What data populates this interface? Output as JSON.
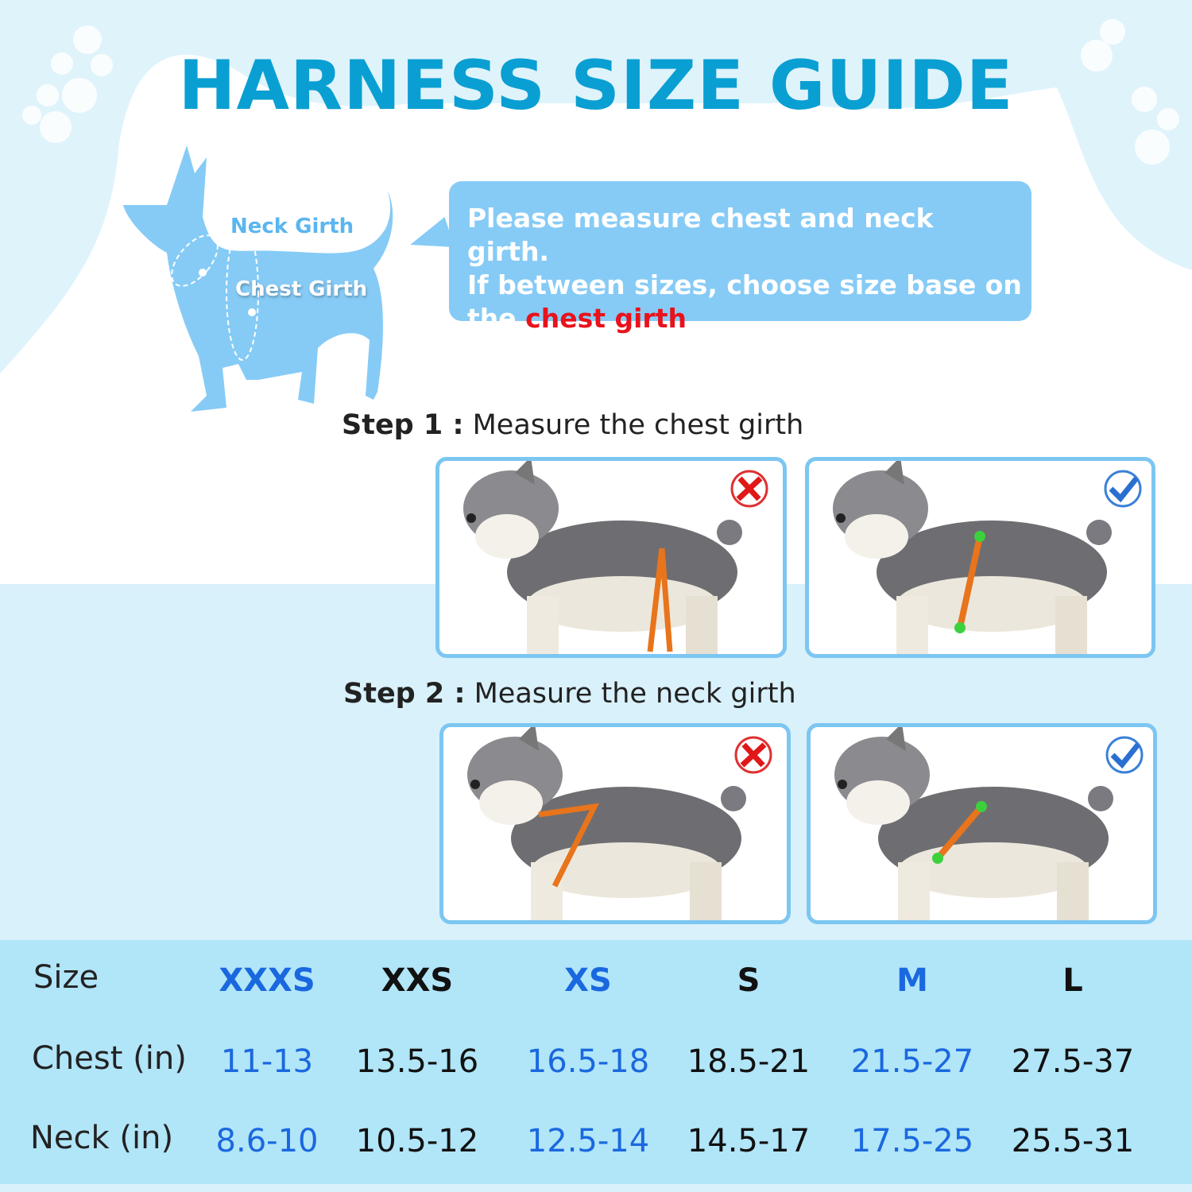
{
  "title": "HARNESS SIZE GUIDE",
  "diagram": {
    "neck_label": "Neck Girth",
    "chest_label": "Chest Girth"
  },
  "note": {
    "line1": "Please measure chest and neck girth.",
    "line2": "If between sizes, choose size base on",
    "line3_prefix": "the ",
    "line3_highlight": "chest girth",
    "line3_suffix": ".",
    "highlight_color": "#e8121c"
  },
  "steps": [
    {
      "label": "Step 1 :",
      "text": "Measure the chest girth",
      "photos": [
        {
          "mark": "wrong",
          "icon": "red-x-icon"
        },
        {
          "mark": "correct",
          "icon": "blue-check-icon"
        }
      ]
    },
    {
      "label": "Step 2 :",
      "text": "Measure the neck girth",
      "photos": [
        {
          "mark": "wrong",
          "icon": "red-x-icon"
        },
        {
          "mark": "correct",
          "icon": "blue-check-icon"
        }
      ]
    }
  ],
  "size_table": {
    "row_labels": [
      "Size",
      "Chest (in)",
      "Neck (in)"
    ],
    "sizes": [
      "XXXS",
      "XXS",
      "XS",
      "S",
      "M",
      "L"
    ],
    "chest": [
      "11-13",
      "13.5-16",
      "16.5-18",
      "18.5-21",
      "21.5-27",
      "27.5-37"
    ],
    "neck": [
      "8.6-10",
      "10.5-12",
      "12.5-14",
      "14.5-17",
      "17.5-25",
      "25.5-31"
    ],
    "colors": {
      "blue": "#1a68df",
      "black": "#111111"
    }
  }
}
